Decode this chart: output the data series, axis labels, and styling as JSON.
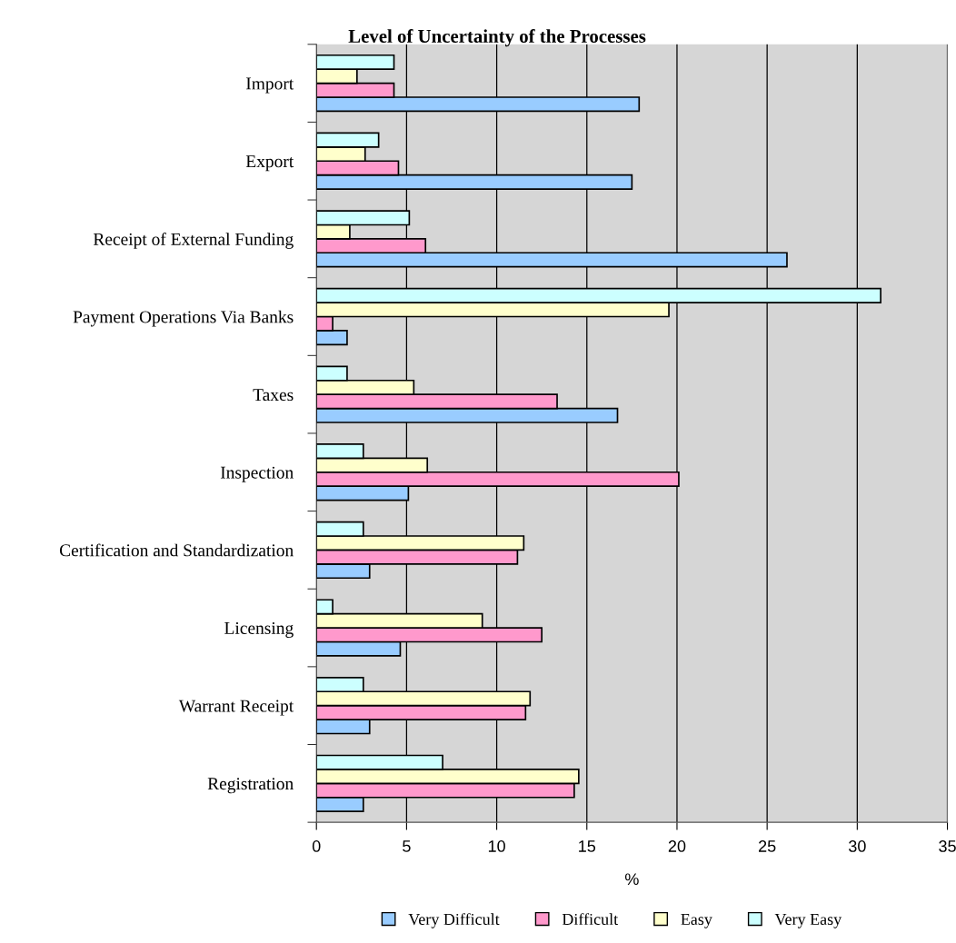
{
  "chart_data": {
    "type": "bar",
    "orientation": "horizontal",
    "title": "Level of Uncertainty of the Processes",
    "xlabel": "%",
    "categories": [
      "Import",
      "Export",
      "Receipt of External Funding",
      "Payment Operations Via Banks",
      "Taxes",
      "Inspection",
      "Certification and Standardization",
      "Licensing",
      "Warrant Receipt",
      "Registration"
    ],
    "series": [
      {
        "name": "Very Difficult",
        "color": "#99ccff",
        "values": [
          17.9,
          17.5,
          26.1,
          1.7,
          16.7,
          5.1,
          2.95,
          4.65,
          2.95,
          2.6
        ]
      },
      {
        "name": "Difficult",
        "color": "#ff99cc",
        "values": [
          4.3,
          4.55,
          6.05,
          0.9,
          13.35,
          20.1,
          11.15,
          12.5,
          11.6,
          14.3
        ]
      },
      {
        "name": "Easy",
        "color": "#ffffcc",
        "values": [
          2.25,
          2.7,
          1.85,
          19.55,
          5.4,
          6.15,
          11.5,
          9.2,
          11.85,
          14.55
        ]
      },
      {
        "name": "Very Easy",
        "color": "#ccffff",
        "values": [
          4.3,
          3.45,
          5.15,
          31.3,
          1.7,
          2.6,
          2.6,
          0.9,
          2.6,
          7.0
        ]
      }
    ],
    "xlim": [
      0,
      35
    ],
    "xticks": [
      0,
      5,
      10,
      15,
      20,
      25,
      30,
      35
    ],
    "grid": "x",
    "legend": "bottom"
  }
}
